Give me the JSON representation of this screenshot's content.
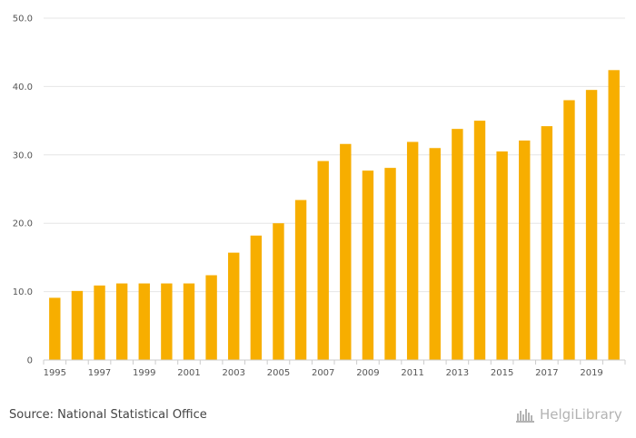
{
  "chart_data": {
    "type": "bar",
    "title": "",
    "xlabel": "",
    "ylabel": "",
    "ylim": [
      0,
      50
    ],
    "y_ticks": [
      {
        "value": 0,
        "label": "0"
      },
      {
        "value": 10,
        "label": "10.0"
      },
      {
        "value": 20,
        "label": "20.0"
      },
      {
        "value": 30,
        "label": "30.0"
      },
      {
        "value": 40,
        "label": "40.0"
      },
      {
        "value": 50,
        "label": "50.0"
      }
    ],
    "categories": [
      "1995",
      "1996",
      "1997",
      "1998",
      "1999",
      "2000",
      "2001",
      "2002",
      "2003",
      "2004",
      "2005",
      "2006",
      "2007",
      "2008",
      "2009",
      "2010",
      "2011",
      "2012",
      "2013",
      "2014",
      "2015",
      "2016",
      "2017",
      "2018",
      "2019",
      "2020"
    ],
    "x_tick_labels": [
      "1995",
      "1997",
      "1999",
      "2001",
      "2003",
      "2005",
      "2007",
      "2009",
      "2011",
      "2013",
      "2015",
      "2017",
      "2019"
    ],
    "values": [
      9.1,
      10.1,
      10.9,
      11.2,
      11.2,
      11.2,
      11.2,
      12.4,
      15.7,
      18.2,
      20.0,
      23.4,
      29.1,
      31.6,
      27.7,
      28.1,
      31.9,
      31.0,
      33.8,
      35.0,
      30.5,
      32.1,
      34.2,
      38.0,
      39.5,
      42.4
    ],
    "grid": true,
    "color": "#f7ae00"
  },
  "source": "Source: National Statistical Office",
  "logo": {
    "text": "HelgiLibrary",
    "icon": "helgi-library-icon"
  }
}
